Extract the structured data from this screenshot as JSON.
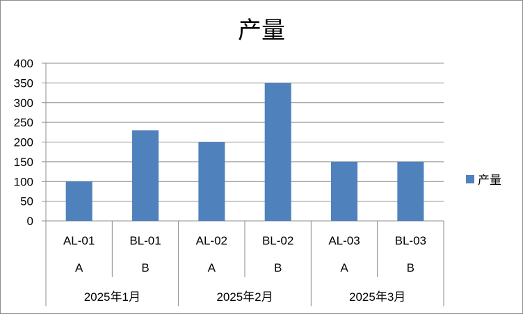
{
  "chart_data": {
    "type": "bar",
    "title": "产量",
    "categories": [
      "AL-01",
      "BL-01",
      "AL-02",
      "BL-02",
      "AL-03",
      "BL-03"
    ],
    "subcategories": [
      "A",
      "B",
      "A",
      "B",
      "A",
      "B"
    ],
    "groups": [
      {
        "label": "2025年1月",
        "span": 2
      },
      {
        "label": "2025年2月",
        "span": 2
      },
      {
        "label": "2025年3月",
        "span": 2
      }
    ],
    "series": [
      {
        "name": "产量",
        "values": [
          100,
          230,
          200,
          350,
          150,
          150
        ],
        "color": "#4f81bd"
      }
    ],
    "yticks": [
      "0",
      "50",
      "100",
      "150",
      "200",
      "250",
      "300",
      "350",
      "400"
    ],
    "ylim": [
      0,
      400
    ],
    "grid": true,
    "legend": "right"
  }
}
